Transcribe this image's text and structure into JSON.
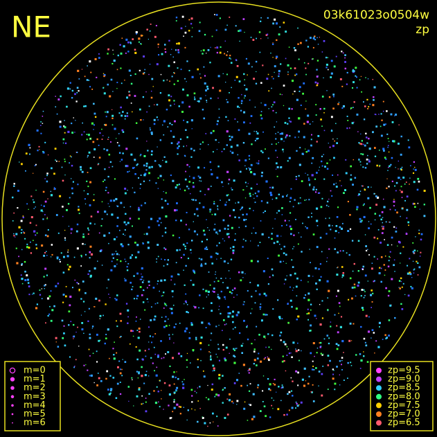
{
  "header": {
    "corner": "NE",
    "frame_id": "03k61023o0504w",
    "quantity": "zp"
  },
  "magnitude_legend": [
    "m=0",
    "m=1",
    "m=2",
    "m=3",
    "m=4",
    "m=5",
    "m=6"
  ],
  "zp_legend": [
    {
      "label": "zp=9.5",
      "color": "#ff40ff"
    },
    {
      "label": "zp=9.0",
      "color": "#c040ff"
    },
    {
      "label": "zp=8.5",
      "color": "#30d0ff"
    },
    {
      "label": "zp=8.0",
      "color": "#30ff80"
    },
    {
      "label": "zp=7.5",
      "color": "#ffd000"
    },
    {
      "label": "zp=7.0",
      "color": "#ff8020"
    },
    {
      "label": "zp=6.5",
      "color": "#ff5a6e"
    }
  ]
}
